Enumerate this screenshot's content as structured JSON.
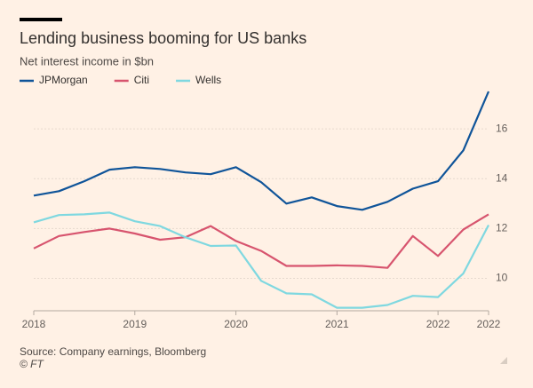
{
  "chart_data": {
    "type": "line",
    "title": "Lending business booming for US banks",
    "subtitle": "Net interest income in $bn",
    "source": "Source: Company earnings, Bloomberg",
    "credit": "© FT",
    "categories": [
      "2018",
      null,
      null,
      null,
      "2019",
      null,
      null,
      null,
      "2020",
      null,
      null,
      null,
      "2021",
      null,
      null,
      null,
      "2022",
      null,
      "2022"
    ],
    "series": [
      {
        "name": "JPMorgan",
        "color": "#0f5499",
        "values": [
          13.32,
          13.5,
          13.9,
          14.36,
          14.46,
          14.39,
          14.25,
          14.18,
          14.46,
          13.86,
          13.0,
          13.25,
          12.9,
          12.75,
          13.07,
          13.6,
          13.9,
          15.14,
          17.5
        ]
      },
      {
        "name": "Citi",
        "color": "#d7546e",
        "values": [
          11.2,
          11.7,
          11.86,
          12.0,
          11.8,
          11.55,
          11.65,
          12.1,
          11.5,
          11.1,
          10.5,
          10.5,
          10.52,
          10.5,
          10.42,
          11.7,
          10.9,
          11.96,
          12.57
        ]
      },
      {
        "name": "Wells",
        "color": "#7fd8e0",
        "values": [
          12.25,
          12.54,
          12.57,
          12.64,
          12.29,
          12.1,
          11.65,
          11.3,
          11.32,
          9.9,
          9.4,
          9.36,
          8.82,
          8.82,
          8.93,
          9.3,
          9.25,
          10.2,
          12.14
        ]
      }
    ],
    "ylim": [
      8.7,
      17.7
    ],
    "yticks": [
      10,
      12,
      14,
      16
    ],
    "grid": true,
    "legend": "top"
  }
}
